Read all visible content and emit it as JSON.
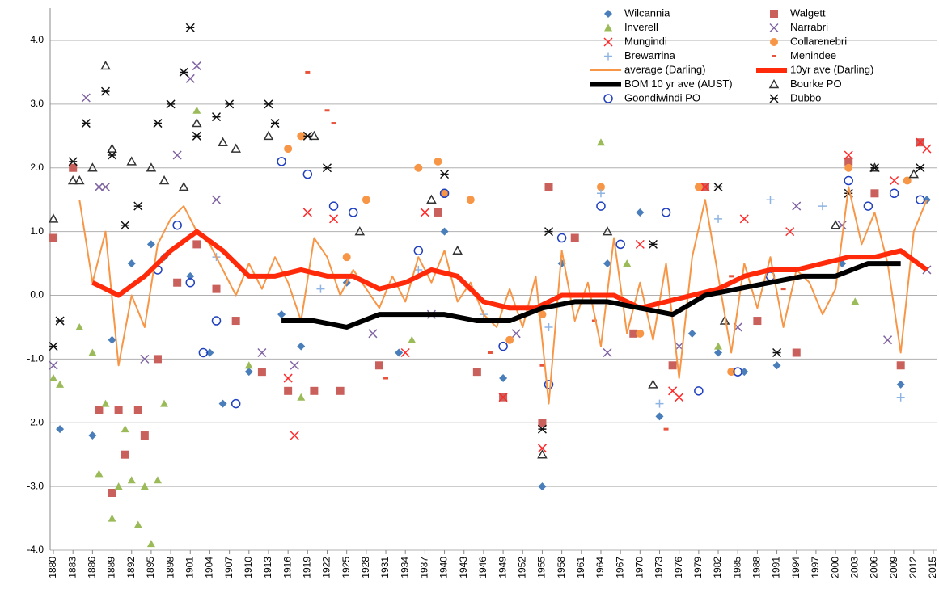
{
  "chart_data": {
    "type": "scatter",
    "legend": "top-right",
    "grid": true,
    "xlim": [
      1879.5,
      2015.5
    ],
    "xticks": [
      1880,
      1883,
      1886,
      1889,
      1892,
      1895,
      1898,
      1901,
      1904,
      1907,
      1910,
      1913,
      1916,
      1919,
      1922,
      1925,
      1928,
      1931,
      1934,
      1937,
      1940,
      1943,
      1946,
      1949,
      1952,
      1955,
      1958,
      1961,
      1964,
      1967,
      1970,
      1973,
      1976,
      1979,
      1982,
      1985,
      1988,
      1991,
      1994,
      1997,
      2000,
      2003,
      2006,
      2009,
      2012,
      2015
    ],
    "ylim": [
      -4,
      4
    ],
    "yticks": [
      {
        "value": -4,
        "label": "-4.0"
      },
      {
        "value": -3,
        "label": "-3.0"
      },
      {
        "value": -2,
        "label": "-2.0"
      },
      {
        "value": -1,
        "label": "-1.0"
      },
      {
        "value": 0,
        "label": "0.0"
      },
      {
        "value": 1,
        "label": "1.0"
      },
      {
        "value": 2,
        "label": "2.0"
      },
      {
        "value": 3,
        "label": "3.0"
      },
      {
        "value": 4,
        "label": "4.0"
      }
    ],
    "series": [
      {
        "name": "Wilcannia",
        "color": "#4a7ebb",
        "marker": "diamond",
        "x": [
          1881,
          1886,
          1889,
          1892,
          1895,
          1897,
          1901,
          1904,
          1906,
          1910,
          1915,
          1918,
          1925,
          1933,
          1940,
          1949,
          1955,
          1958,
          1965,
          1970,
          1973,
          1978,
          1982,
          1986,
          1991,
          2001,
          2010,
          2014
        ],
        "values": [
          -2.1,
          -2.2,
          -0.7,
          0.5,
          0.8,
          0.6,
          0.3,
          -0.9,
          -1.7,
          -1.2,
          -0.3,
          -0.8,
          0.2,
          -0.9,
          1.0,
          -1.3,
          -3.0,
          0.5,
          0.5,
          1.3,
          -1.9,
          -0.6,
          -0.9,
          -1.2,
          -1.1,
          0.5,
          -1.4,
          1.5
        ]
      },
      {
        "name": "Walgett",
        "color": "#c9605c",
        "marker": "square",
        "x": [
          1880,
          1883,
          1887,
          1889,
          1890,
          1891,
          1893,
          1894,
          1896,
          1899,
          1902,
          1905,
          1908,
          1912,
          1916,
          1920,
          1924,
          1930,
          1939,
          1945,
          1949,
          1955,
          1956,
          1960,
          1969,
          1975,
          1980,
          1988,
          1994,
          2002,
          2006,
          2010,
          2013
        ],
        "values": [
          0.9,
          2.0,
          -1.8,
          -3.1,
          -1.8,
          -2.5,
          -1.8,
          -2.2,
          -1.0,
          0.2,
          0.8,
          0.1,
          -0.4,
          -1.2,
          -1.5,
          -1.5,
          -1.5,
          -1.1,
          1.3,
          -1.2,
          -1.6,
          -2.0,
          1.7,
          0.9,
          -0.6,
          -1.1,
          1.7,
          -0.4,
          -0.9,
          2.1,
          1.6,
          -1.1,
          2.4
        ]
      },
      {
        "name": "Inverell",
        "color": "#9bbb59",
        "marker": "triangle",
        "x": [
          1880,
          1881,
          1884,
          1886,
          1887,
          1888,
          1889,
          1890,
          1891,
          1892,
          1893,
          1894,
          1895,
          1896,
          1897,
          1902,
          1910,
          1918,
          1935,
          1964,
          1968,
          1982,
          2003
        ],
        "values": [
          -1.3,
          -1.4,
          -0.5,
          -0.9,
          -2.8,
          -1.7,
          -3.5,
          -3.0,
          -2.1,
          -2.9,
          -3.6,
          -3.0,
          -3.9,
          -2.9,
          -1.7,
          2.9,
          -1.1,
          -1.6,
          -0.7,
          2.4,
          0.5,
          -0.8,
          -0.1
        ]
      },
      {
        "name": "Narrabri",
        "color": "#8064a2",
        "marker": "x",
        "x": [
          1880,
          1885,
          1887,
          1888,
          1894,
          1899,
          1901,
          1902,
          1905,
          1912,
          1917,
          1929,
          1938,
          1951,
          1965,
          1976,
          1985,
          1994,
          2001,
          2008,
          2014
        ],
        "values": [
          -1.1,
          3.1,
          1.7,
          1.7,
          -1.0,
          2.2,
          3.4,
          3.6,
          1.5,
          -0.9,
          -1.1,
          -0.6,
          -0.3,
          -0.6,
          -0.9,
          -0.8,
          -0.5,
          1.4,
          1.1,
          -0.7,
          0.4
        ]
      },
      {
        "name": "Mungindi",
        "color": "#ff2a2a",
        "marker": "x",
        "x": [
          1916,
          1917,
          1919,
          1923,
          1934,
          1937,
          1949,
          1955,
          1970,
          1975,
          1976,
          1980,
          1986,
          1993,
          2002,
          2009,
          2013,
          2014
        ],
        "values": [
          -1.3,
          -2.2,
          1.3,
          1.2,
          -0.9,
          1.3,
          -1.6,
          -2.4,
          0.8,
          -1.5,
          -1.6,
          1.7,
          1.2,
          1.0,
          2.2,
          1.8,
          2.4,
          2.3
        ]
      },
      {
        "name": "Collarenebri",
        "color": "#f79646",
        "marker": "circle",
        "x": [
          1916,
          1918,
          1925,
          1928,
          1936,
          1939,
          1940,
          1944,
          1950,
          1955,
          1964,
          1970,
          1979,
          1984,
          2002,
          2011
        ],
        "values": [
          2.3,
          2.5,
          0.6,
          1.5,
          2.0,
          2.1,
          1.6,
          1.5,
          -0.7,
          -0.3,
          1.7,
          -0.6,
          1.7,
          -1.2,
          2.0,
          1.8
        ]
      },
      {
        "name": "Brewarrina",
        "color": "#8eb4e3",
        "marker": "plus",
        "x": [
          1905,
          1921,
          1936,
          1946,
          1956,
          1964,
          1973,
          1982,
          1990,
          1998,
          2010
        ],
        "values": [
          0.6,
          0.1,
          0.4,
          -0.3,
          -0.5,
          1.6,
          -1.7,
          1.2,
          1.5,
          1.4,
          -1.6
        ]
      },
      {
        "name": "Menindee",
        "color": "#e6543c",
        "marker": "dash",
        "x": [
          1919,
          1922,
          1923,
          1931,
          1947,
          1955,
          1963,
          1974,
          1984,
          1992,
          2004
        ],
        "values": [
          3.5,
          2.9,
          2.7,
          -1.3,
          -0.9,
          -1.1,
          -0.4,
          -2.1,
          0.3,
          0.1,
          0.6
        ]
      },
      {
        "name": "average (Darling)",
        "color": "#f79646",
        "marker": "line",
        "width": 2,
        "x": [
          1884,
          1886,
          1888,
          1890,
          1892,
          1894,
          1896,
          1898,
          1900,
          1902,
          1904,
          1906,
          1908,
          1910,
          1912,
          1914,
          1916,
          1918,
          1920,
          1922,
          1924,
          1926,
          1928,
          1930,
          1932,
          1934,
          1936,
          1938,
          1940,
          1942,
          1944,
          1946,
          1948,
          1950,
          1952,
          1954,
          1956,
          1958,
          1960,
          1962,
          1964,
          1966,
          1968,
          1970,
          1972,
          1974,
          1976,
          1978,
          1980,
          1982,
          1984,
          1986,
          1988,
          1990,
          1992,
          1994,
          1996,
          1998,
          2000,
          2002,
          2004,
          2006,
          2008,
          2010,
          2012,
          2014
        ],
        "values": [
          1.5,
          0.2,
          1.0,
          -1.1,
          0.0,
          -0.5,
          0.8,
          1.2,
          1.4,
          1.0,
          0.8,
          0.4,
          0.0,
          0.5,
          0.1,
          0.6,
          0.2,
          -0.4,
          0.9,
          0.6,
          0.0,
          0.4,
          0.1,
          -0.2,
          0.3,
          -0.1,
          0.6,
          0.2,
          0.7,
          -0.1,
          0.2,
          -0.3,
          -0.5,
          0.1,
          -0.5,
          0.3,
          -1.7,
          0.7,
          -0.4,
          0.2,
          -0.8,
          0.9,
          -0.6,
          0.2,
          -0.7,
          0.5,
          -1.3,
          0.6,
          1.5,
          0.3,
          -0.9,
          0.5,
          -0.2,
          0.6,
          -0.5,
          0.4,
          0.2,
          -0.3,
          0.1,
          1.7,
          0.8,
          1.3,
          0.5,
          -0.9,
          1.0,
          1.5
        ]
      },
      {
        "name": "10yr ave (Darling)",
        "color": "#ff2a0a",
        "marker": "line",
        "width": 6,
        "x": [
          1886,
          1890,
          1894,
          1898,
          1902,
          1906,
          1910,
          1914,
          1918,
          1922,
          1926,
          1930,
          1934,
          1938,
          1942,
          1946,
          1950,
          1954,
          1958,
          1962,
          1966,
          1970,
          1974,
          1978,
          1982,
          1986,
          1990,
          1994,
          1998,
          2002,
          2006,
          2010,
          2014
        ],
        "values": [
          0.2,
          0.0,
          0.3,
          0.7,
          1.0,
          0.7,
          0.3,
          0.3,
          0.4,
          0.3,
          0.3,
          0.1,
          0.2,
          0.4,
          0.3,
          -0.1,
          -0.2,
          -0.2,
          0.0,
          0.0,
          0.0,
          -0.2,
          -0.1,
          0.0,
          0.1,
          0.3,
          0.4,
          0.4,
          0.5,
          0.6,
          0.6,
          0.7,
          0.4
        ]
      },
      {
        "name": "BOM 10 yr ave (AUST)",
        "color": "#000000",
        "marker": "line",
        "width": 6,
        "x": [
          1915,
          1920,
          1925,
          1930,
          1935,
          1940,
          1945,
          1950,
          1955,
          1960,
          1965,
          1970,
          1975,
          1980,
          1985,
          1990,
          1995,
          2000,
          2005,
          2010
        ],
        "values": [
          -0.4,
          -0.4,
          -0.5,
          -0.3,
          -0.3,
          -0.3,
          -0.4,
          -0.4,
          -0.2,
          -0.1,
          -0.1,
          -0.2,
          -0.3,
          0.0,
          0.1,
          0.2,
          0.3,
          0.3,
          0.5,
          0.5
        ]
      },
      {
        "name": "Bourke PO",
        "color": "#333333",
        "marker": "open-triangle",
        "x": [
          1880,
          1883,
          1884,
          1886,
          1888,
          1889,
          1892,
          1895,
          1897,
          1900,
          1902,
          1906,
          1908,
          1913,
          1920,
          1927,
          1938,
          1942,
          1955,
          1965,
          1972,
          1983,
          2000,
          2006,
          2012
        ],
        "values": [
          1.2,
          1.8,
          1.8,
          2.0,
          3.6,
          2.3,
          2.1,
          2.0,
          1.8,
          1.7,
          2.7,
          2.4,
          2.3,
          2.5,
          2.5,
          1.0,
          1.5,
          0.7,
          -2.5,
          1.0,
          -1.4,
          -0.4,
          1.1,
          2.0,
          1.9
        ]
      },
      {
        "name": "Goondiwindi PO",
        "color": "#1f3fbf",
        "marker": "open-circle",
        "x": [
          1896,
          1899,
          1901,
          1903,
          1905,
          1908,
          1915,
          1919,
          1923,
          1926,
          1936,
          1940,
          1949,
          1956,
          1958,
          1964,
          1967,
          1974,
          1979,
          1985,
          1990,
          2002,
          2005,
          2009,
          2013
        ],
        "values": [
          0.4,
          1.1,
          0.2,
          -0.9,
          -0.4,
          -1.7,
          2.1,
          1.9,
          1.4,
          1.3,
          0.7,
          1.6,
          -0.8,
          -1.4,
          0.9,
          1.4,
          0.8,
          1.3,
          -1.5,
          -1.2,
          0.3,
          1.8,
          1.4,
          1.6,
          1.5
        ]
      },
      {
        "name": "Dubbo",
        "color": "#111111",
        "marker": "asterisk",
        "x": [
          1880,
          1881,
          1883,
          1885,
          1888,
          1889,
          1891,
          1893,
          1896,
          1898,
          1900,
          1901,
          1902,
          1905,
          1907,
          1913,
          1914,
          1919,
          1922,
          1940,
          1955,
          1956,
          1972,
          1982,
          1991,
          2002,
          2006,
          2013
        ],
        "values": [
          -0.8,
          -0.4,
          2.1,
          2.7,
          3.2,
          2.2,
          1.1,
          1.4,
          2.7,
          3.0,
          3.5,
          4.2,
          2.5,
          2.8,
          3.0,
          3.0,
          2.7,
          2.5,
          2.0,
          1.9,
          -2.1,
          1.0,
          0.8,
          1.7,
          -0.9,
          1.6,
          2.0,
          2.0
        ]
      }
    ]
  }
}
